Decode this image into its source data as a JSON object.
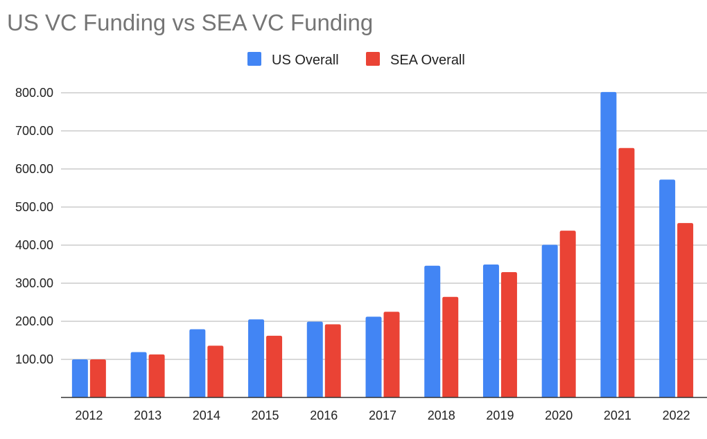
{
  "chart_data": {
    "type": "bar",
    "title": "US VC Funding vs SEA VC Funding",
    "xlabel": "",
    "ylabel": "",
    "categories": [
      "2012",
      "2013",
      "2014",
      "2015",
      "2016",
      "2017",
      "2018",
      "2019",
      "2020",
      "2021",
      "2022"
    ],
    "series": [
      {
        "name": "US Overall",
        "color": "#4285f4",
        "values": [
          100,
          119,
          179,
          205,
          199,
          212,
          346,
          349,
          401,
          802,
          572
        ]
      },
      {
        "name": "SEA Overall",
        "color": "#ea4335",
        "values": [
          100,
          113,
          136,
          162,
          192,
          225,
          264,
          329,
          438,
          655,
          458
        ]
      }
    ],
    "yticks": [
      "100.00",
      "200.00",
      "300.00",
      "400.00",
      "500.00",
      "600.00",
      "700.00",
      "800.00"
    ],
    "ylim": [
      0,
      800
    ],
    "grid": true,
    "legend_position": "top-center"
  }
}
